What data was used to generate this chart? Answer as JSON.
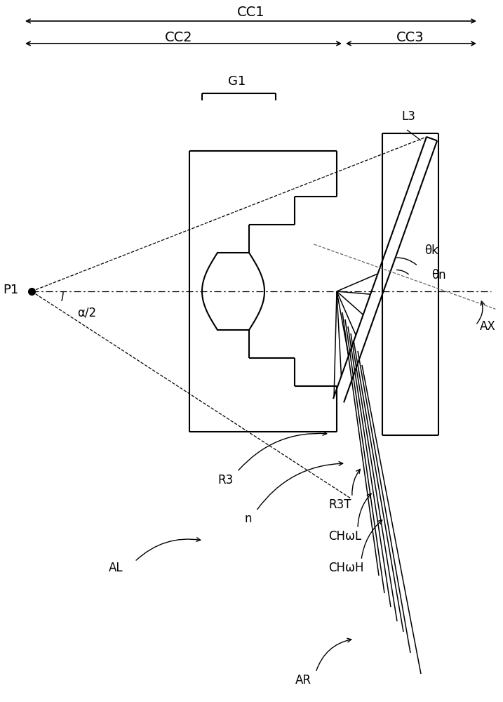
{
  "bg_color": "#ffffff",
  "line_color": "#000000",
  "dashed_color": "#666666",
  "figsize": [
    7.17,
    10.0
  ],
  "dpi": 100,
  "cc1_label": "CC1",
  "cc2_label": "CC2",
  "cc3_label": "CC3",
  "g1_label": "G1",
  "l3_label": "L3",
  "p1_label": "P1",
  "ax_label": "AX",
  "thetak_label": "θk",
  "thetan_label": "θn",
  "alpha_label": "α/2",
  "r3_label": "R3",
  "n_label": "n",
  "r3t_label": "R3T",
  "chwl_label": "CHωL",
  "chwh_label": "CHωH",
  "al_label": "AL",
  "ar_label": "AR"
}
